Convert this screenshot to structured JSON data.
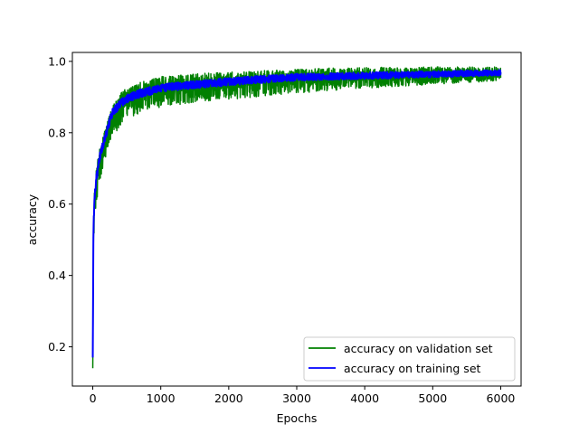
{
  "chart_data": {
    "type": "line",
    "title": "",
    "xlabel": "Epochs",
    "ylabel": "accuracy",
    "xlim": [
      -300,
      6300
    ],
    "ylim": [
      0.09,
      1.025
    ],
    "xticks": [
      0,
      1000,
      2000,
      3000,
      4000,
      5000,
      6000
    ],
    "xtick_labels": [
      "0",
      "1000",
      "2000",
      "3000",
      "4000",
      "5000",
      "6000"
    ],
    "yticks": [
      0.2,
      0.4,
      0.6,
      0.8,
      1.0
    ],
    "ytick_labels": [
      "0.2",
      "0.4",
      "0.6",
      "0.8",
      "1.0"
    ],
    "grid": false,
    "legend_position": "lower-right",
    "x": [
      0,
      10,
      20,
      30,
      50,
      75,
      100,
      150,
      200,
      250,
      300,
      400,
      500,
      700,
      1000,
      1500,
      2000,
      2500,
      3000,
      3500,
      4000,
      4500,
      5000,
      5500,
      6000
    ],
    "series": [
      {
        "name": "accuracy on validation set",
        "color": "#008000",
        "values": [
          0.14,
          0.52,
          0.58,
          0.62,
          0.66,
          0.69,
          0.72,
          0.755,
          0.79,
          0.825,
          0.85,
          0.875,
          0.895,
          0.91,
          0.925,
          0.935,
          0.94,
          0.945,
          0.95,
          0.955,
          0.958,
          0.96,
          0.962,
          0.963,
          0.965
        ],
        "noise_upper": 0.035,
        "noise_lower": 0.06,
        "noise_decay_to": 0.02
      },
      {
        "name": "accuracy on training set",
        "color": "#0000ff",
        "values": [
          0.17,
          0.53,
          0.585,
          0.625,
          0.67,
          0.7,
          0.73,
          0.765,
          0.8,
          0.835,
          0.86,
          0.88,
          0.895,
          0.91,
          0.925,
          0.935,
          0.943,
          0.95,
          0.955,
          0.958,
          0.96,
          0.962,
          0.964,
          0.966,
          0.968
        ],
        "noise_upper": 0.012,
        "noise_lower": 0.012,
        "noise_decay_to": 0.008
      }
    ]
  }
}
